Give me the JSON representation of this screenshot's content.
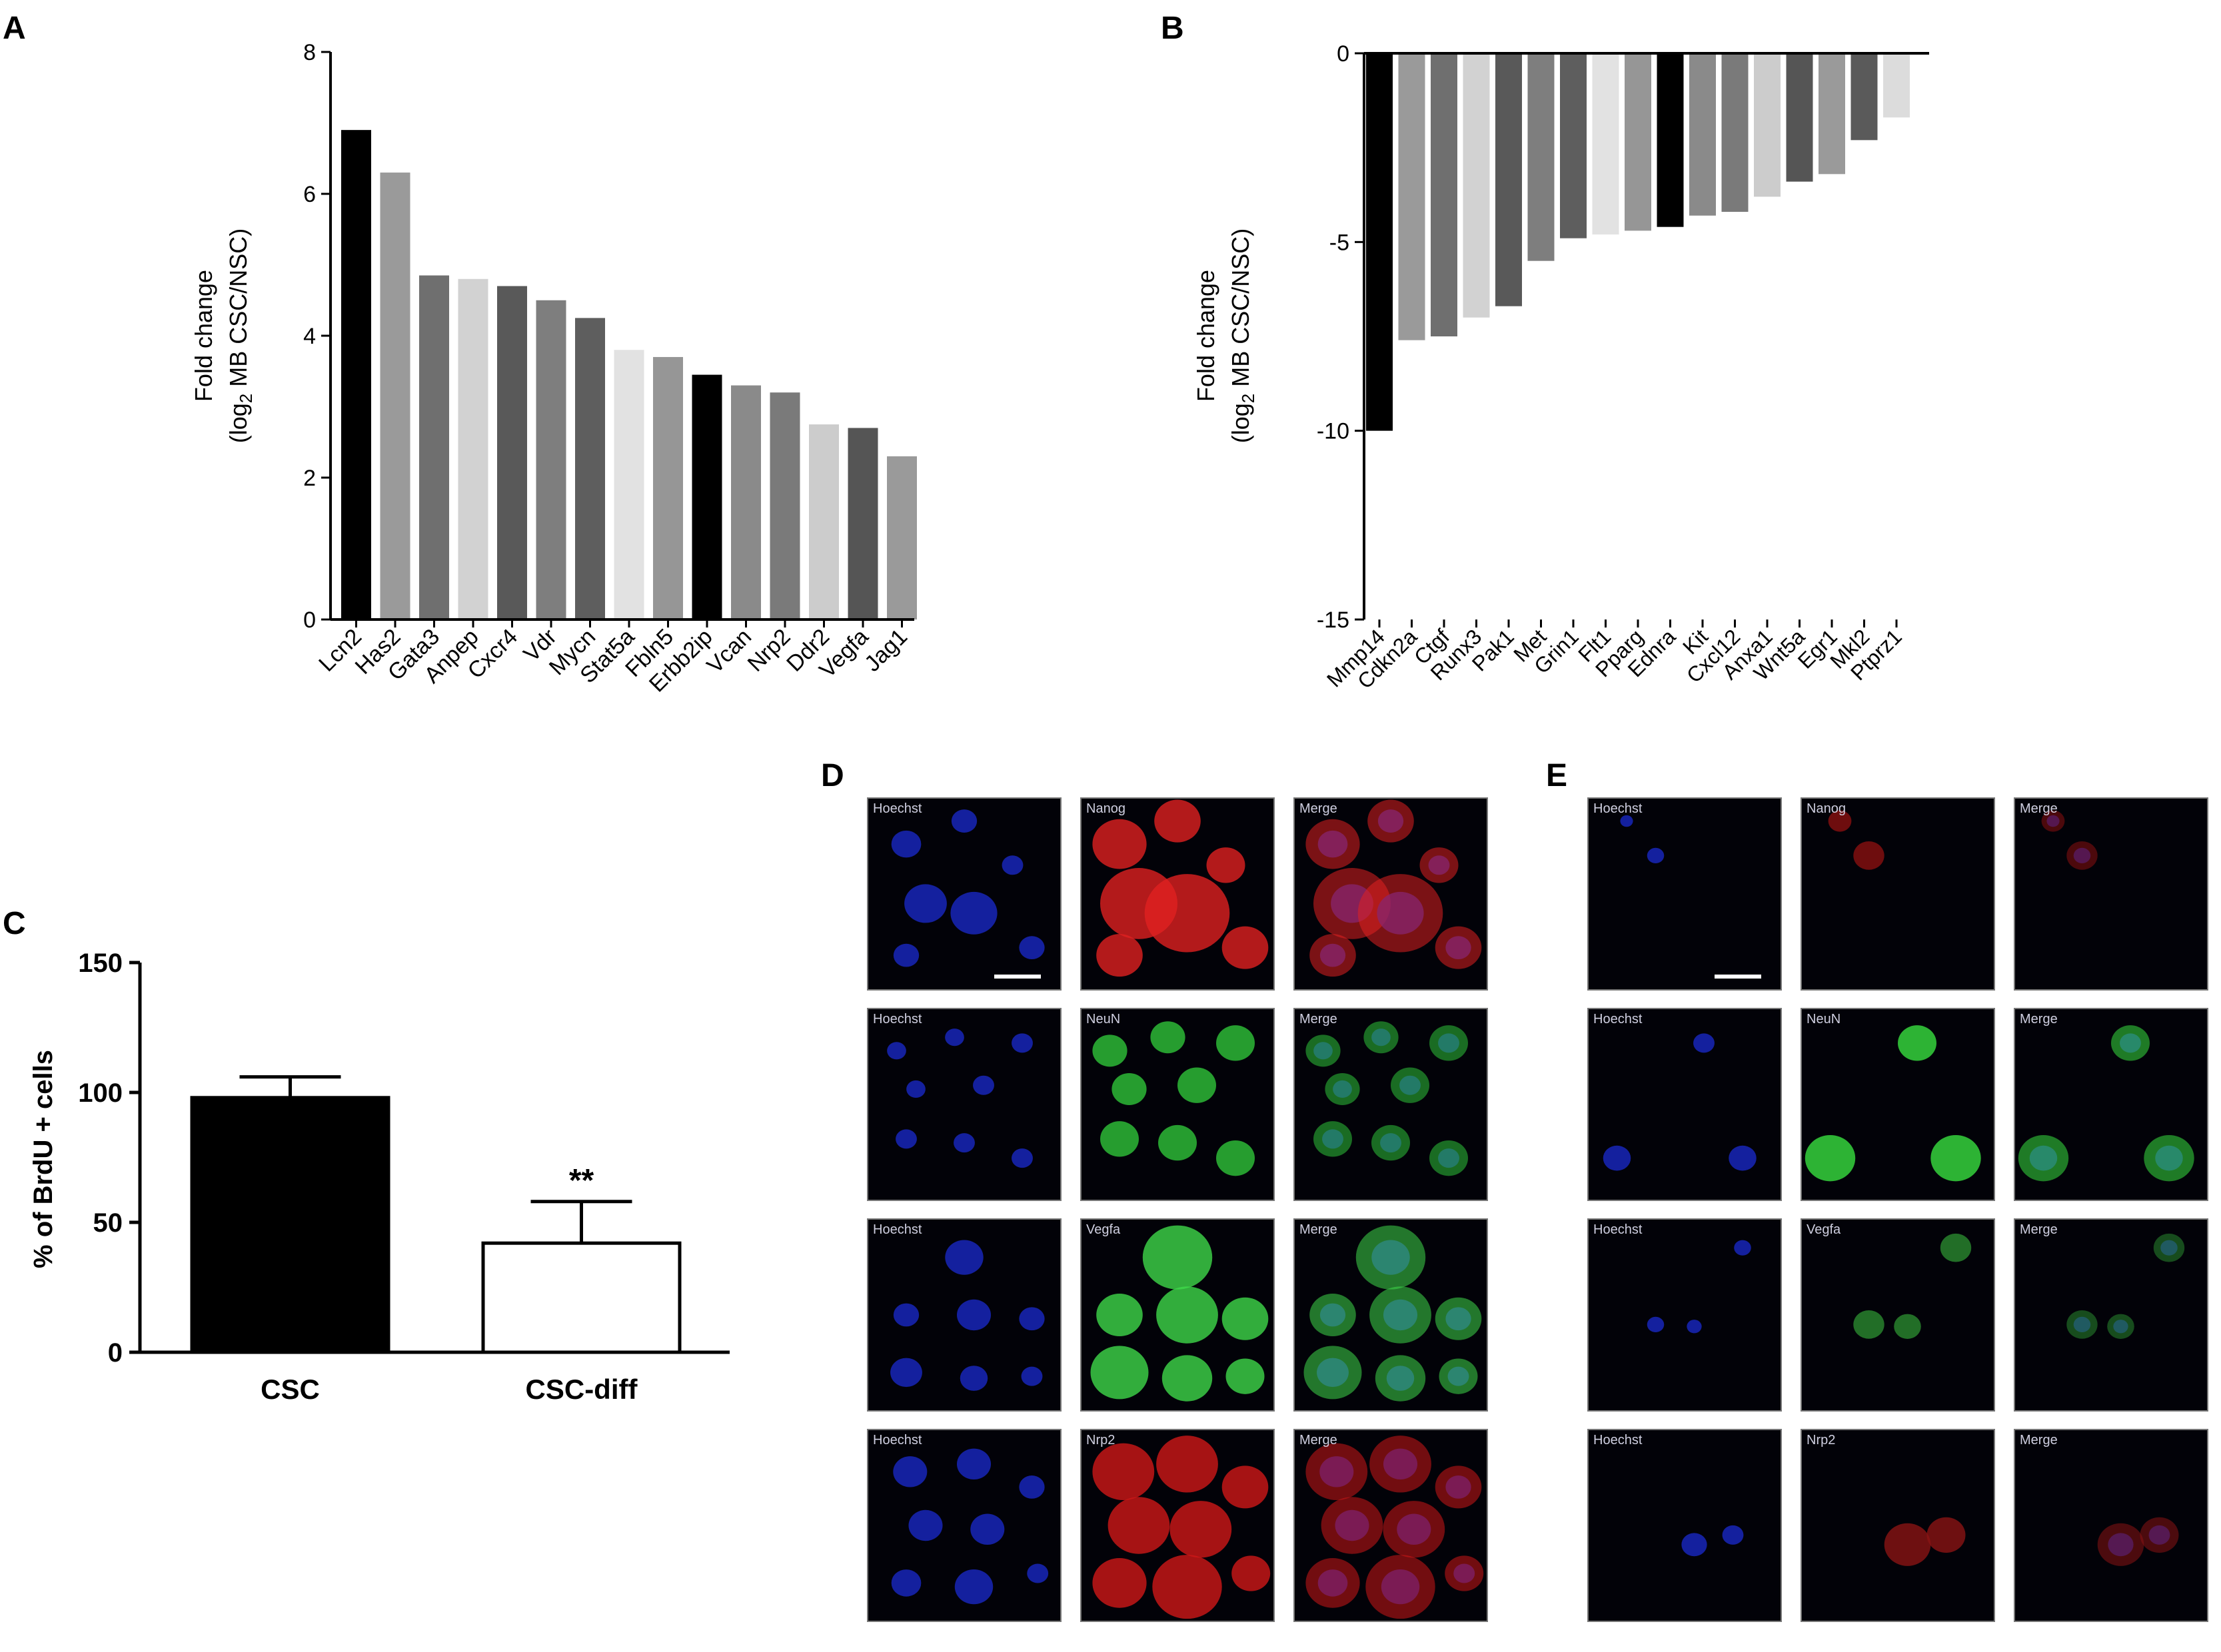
{
  "panel_letters": [
    "A",
    "B",
    "C",
    "D",
    "E"
  ],
  "chart_data": [
    {
      "panel": "A",
      "type": "bar",
      "ylabel_line1": "Fold change",
      "ylabel_line2_pre": "(log",
      "ylabel_line2_sub": "2",
      "ylabel_line2_post": " MB CSC/NSC)",
      "ylim": [
        0,
        8
      ],
      "yticks": [
        0,
        2,
        4,
        6,
        8
      ],
      "categories": [
        "Lcn2",
        "Has2",
        "Gata3",
        "Anpep",
        "Cxcr4",
        "Vdr",
        "Mycn",
        "Stat5a",
        "Fbln5",
        "Erbb2ip",
        "Vcan",
        "Nrp2",
        "Ddr2",
        "Vegfa",
        "Jag1"
      ],
      "values": [
        6.9,
        6.3,
        4.85,
        4.8,
        4.7,
        4.5,
        4.25,
        3.8,
        3.7,
        3.45,
        3.3,
        3.2,
        2.75,
        2.7,
        2.3
      ],
      "colors": [
        "#000000",
        "#9a9a9a",
        "#6f6f6f",
        "#d2d2d2",
        "#595959",
        "#7e7e7e",
        "#5e5e5e",
        "#e2e2e2",
        "#969696",
        "#000000",
        "#8a8a8a",
        "#7a7a7a",
        "#cccccc",
        "#555555",
        "#9a9a9a"
      ]
    },
    {
      "panel": "B",
      "type": "bar",
      "ylabel_line1": "Fold change",
      "ylabel_line2_pre": "(log",
      "ylabel_line2_sub": "2",
      "ylabel_line2_post": " MB CSC/NSC)",
      "ylim": [
        -15,
        0
      ],
      "yticks": [
        0,
        -5,
        -10,
        -15
      ],
      "categories": [
        "Mmp14",
        "Cdkn2a",
        "Ctgf",
        "Runx3",
        "Pak1",
        "Met",
        "Grin1",
        "Flt1",
        "Pparg",
        "Ednra",
        "Kit",
        "Cxcl12",
        "Anxa1",
        "Wnt5a",
        "Egr1",
        "Mkl2",
        "Ptprz1"
      ],
      "values": [
        -10,
        -7.6,
        -7.5,
        -7.0,
        -6.7,
        -5.5,
        -4.9,
        -4.8,
        -4.7,
        -4.6,
        -4.3,
        -4.2,
        -3.8,
        -3.4,
        -3.2,
        -2.3,
        -1.7
      ],
      "colors": [
        "#000000",
        "#9a9a9a",
        "#6f6f6f",
        "#d2d2d2",
        "#595959",
        "#7e7e7e",
        "#5e5e5e",
        "#e2e2e2",
        "#969696",
        "#000000",
        "#8a8a8a",
        "#7a7a7a",
        "#cccccc",
        "#555555",
        "#9a9a9a",
        "#5a5a5a",
        "#dcdcdc"
      ]
    },
    {
      "panel": "C",
      "type": "bar",
      "ylabel": "% of BrdU + cells",
      "ylim": [
        0,
        150
      ],
      "yticks": [
        0,
        50,
        100,
        150
      ],
      "categories": [
        "CSC",
        "CSC-diff"
      ],
      "values": [
        98,
        42
      ],
      "errors": [
        8,
        16
      ],
      "fills": [
        "#000000",
        "#ffffff"
      ],
      "annotation": "**"
    }
  ],
  "micrographs": {
    "D": {
      "scalebar_row": 0,
      "rows": [
        {
          "labels": [
            "Hoechst",
            "Nanog",
            "Merge"
          ],
          "marker_color": "#e02020",
          "pattern": "D-nanog"
        },
        {
          "labels": [
            "Hoechst",
            "NeuN",
            "Merge"
          ],
          "marker_color": "#2fc43a",
          "pattern": "D-neun"
        },
        {
          "labels": [
            "Hoechst",
            "Vegfa",
            "Merge"
          ],
          "marker_color": "#3fd84a",
          "pattern": "D-vegfa"
        },
        {
          "labels": [
            "Hoechst",
            "Nrp2",
            "Merge"
          ],
          "marker_color": "#d01818",
          "pattern": "D-nrp2"
        }
      ]
    },
    "E": {
      "scalebar_row": 0,
      "rows": [
        {
          "labels": [
            "Hoechst",
            "Nanog",
            "Merge"
          ],
          "marker_color": "#8a1010",
          "pattern": "E-nanog"
        },
        {
          "labels": [
            "Hoechst",
            "NeuN",
            "Merge"
          ],
          "marker_color": "#38e040",
          "pattern": "E-neun"
        },
        {
          "labels": [
            "Hoechst",
            "Vegfa",
            "Merge"
          ],
          "marker_color": "#2a8a30",
          "pattern": "E-vegfa"
        },
        {
          "labels": [
            "Hoechst",
            "Nrp2",
            "Merge"
          ],
          "marker_color": "#8a1414",
          "pattern": "E-nrp2"
        }
      ]
    }
  }
}
